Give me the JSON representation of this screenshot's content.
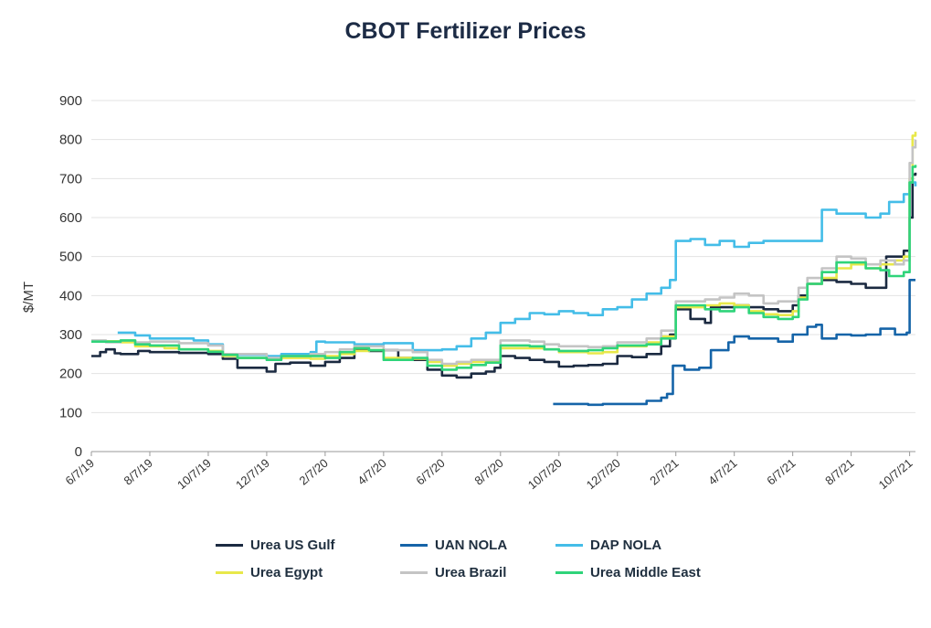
{
  "chart_data": {
    "type": "line",
    "title": "CBOT Fertilizer Prices",
    "xlabel": "",
    "ylabel": "$/MT",
    "ylim": [
      0,
      900
    ],
    "yticks": [
      "0",
      "100",
      "200",
      "300",
      "400",
      "500",
      "600",
      "700",
      "800",
      "900"
    ],
    "xticks": [
      "6/7/19",
      "8/7/19",
      "10/7/19",
      "12/7/19",
      "2/7/20",
      "4/7/20",
      "6/7/20",
      "8/7/20",
      "10/7/20",
      "12/7/20",
      "2/7/21",
      "4/7/21",
      "6/7/21",
      "8/7/21",
      "10/7/21"
    ],
    "xticks_month_index": [
      0,
      2,
      4,
      6,
      8,
      10,
      12,
      14,
      16,
      18,
      20,
      22,
      24,
      26,
      28
    ],
    "x_range_month_index": [
      0,
      28.2
    ],
    "grid": true,
    "legend_position": "bottom",
    "series": [
      {
        "name": "Urea US Gulf",
        "color": "#1b2a41",
        "points": [
          [
            0,
            245
          ],
          [
            0.3,
            255
          ],
          [
            0.5,
            262
          ],
          [
            0.8,
            252
          ],
          [
            1.0,
            250
          ],
          [
            1.5,
            250
          ],
          [
            1.6,
            258
          ],
          [
            2.0,
            255
          ],
          [
            3.0,
            253
          ],
          [
            4.0,
            250
          ],
          [
            4.5,
            238
          ],
          [
            5.0,
            215
          ],
          [
            6.0,
            205
          ],
          [
            6.3,
            225
          ],
          [
            6.8,
            228
          ],
          [
            7.5,
            220
          ],
          [
            8.0,
            230
          ],
          [
            8.5,
            240
          ],
          [
            9.0,
            262
          ],
          [
            9.5,
            258
          ],
          [
            10.0,
            260
          ],
          [
            10.5,
            240
          ],
          [
            11.0,
            235
          ],
          [
            11.5,
            210
          ],
          [
            12.0,
            195
          ],
          [
            12.5,
            190
          ],
          [
            13.0,
            200
          ],
          [
            13.5,
            205
          ],
          [
            13.8,
            215
          ],
          [
            14.0,
            245
          ],
          [
            14.5,
            240
          ],
          [
            15.0,
            235
          ],
          [
            15.5,
            230
          ],
          [
            16.0,
            218
          ],
          [
            16.5,
            220
          ],
          [
            17.0,
            222
          ],
          [
            17.5,
            225
          ],
          [
            18.0,
            245
          ],
          [
            18.5,
            242
          ],
          [
            19.0,
            250
          ],
          [
            19.5,
            270
          ],
          [
            19.8,
            300
          ],
          [
            20.0,
            365
          ],
          [
            20.5,
            340
          ],
          [
            21.0,
            330
          ],
          [
            21.2,
            370
          ],
          [
            22.0,
            375
          ],
          [
            22.5,
            370
          ],
          [
            23.0,
            365
          ],
          [
            23.5,
            360
          ],
          [
            24.0,
            375
          ],
          [
            24.2,
            400
          ],
          [
            24.5,
            430
          ],
          [
            25.0,
            440
          ],
          [
            25.5,
            435
          ],
          [
            26.0,
            430
          ],
          [
            26.5,
            420
          ],
          [
            27.0,
            420
          ],
          [
            27.2,
            500
          ],
          [
            27.8,
            515
          ],
          [
            28.0,
            600
          ],
          [
            28.1,
            710
          ],
          [
            28.2,
            715
          ]
        ]
      },
      {
        "name": "UAN NOLA",
        "color": "#1564a8",
        "points": [
          [
            15.8,
            122
          ],
          [
            16.5,
            122
          ],
          [
            17.0,
            120
          ],
          [
            17.5,
            122
          ],
          [
            18.0,
            122
          ],
          [
            18.5,
            122
          ],
          [
            19.0,
            130
          ],
          [
            19.5,
            138
          ],
          [
            19.7,
            148
          ],
          [
            19.9,
            220
          ],
          [
            20.3,
            210
          ],
          [
            20.8,
            215
          ],
          [
            21.2,
            260
          ],
          [
            21.8,
            280
          ],
          [
            22.0,
            295
          ],
          [
            22.5,
            290
          ],
          [
            23.0,
            290
          ],
          [
            23.5,
            282
          ],
          [
            24.0,
            300
          ],
          [
            24.5,
            320
          ],
          [
            24.8,
            325
          ],
          [
            25.0,
            290
          ],
          [
            25.5,
            300
          ],
          [
            26.0,
            298
          ],
          [
            26.5,
            300
          ],
          [
            27.0,
            315
          ],
          [
            27.5,
            300
          ],
          [
            27.9,
            305
          ],
          [
            28.0,
            440
          ],
          [
            28.2,
            440
          ]
        ]
      },
      {
        "name": "DAP NOLA",
        "color": "#44bde8",
        "points": [
          [
            0.9,
            305
          ],
          [
            1.5,
            298
          ],
          [
            2.0,
            290
          ],
          [
            3.0,
            290
          ],
          [
            3.5,
            285
          ],
          [
            4.0,
            275
          ],
          [
            4.5,
            250
          ],
          [
            5.0,
            248
          ],
          [
            6.0,
            245
          ],
          [
            6.5,
            250
          ],
          [
            7.5,
            255
          ],
          [
            7.7,
            282
          ],
          [
            8.0,
            280
          ],
          [
            9.0,
            275
          ],
          [
            10.0,
            278
          ],
          [
            11.0,
            260
          ],
          [
            12.0,
            262
          ],
          [
            12.5,
            270
          ],
          [
            13.0,
            290
          ],
          [
            13.5,
            305
          ],
          [
            14.0,
            330
          ],
          [
            14.5,
            340
          ],
          [
            15.0,
            355
          ],
          [
            15.5,
            352
          ],
          [
            16.0,
            360
          ],
          [
            16.5,
            355
          ],
          [
            17.0,
            350
          ],
          [
            17.5,
            365
          ],
          [
            18.0,
            370
          ],
          [
            18.5,
            390
          ],
          [
            19.0,
            405
          ],
          [
            19.5,
            420
          ],
          [
            19.8,
            440
          ],
          [
            20.0,
            540
          ],
          [
            20.5,
            545
          ],
          [
            21.0,
            530
          ],
          [
            21.5,
            540
          ],
          [
            22.0,
            525
          ],
          [
            22.5,
            535
          ],
          [
            23.0,
            540
          ],
          [
            25.0,
            620
          ],
          [
            25.5,
            610
          ],
          [
            26.0,
            610
          ],
          [
            26.5,
            600
          ],
          [
            27.0,
            610
          ],
          [
            27.3,
            640
          ],
          [
            27.8,
            660
          ],
          [
            28.0,
            690
          ],
          [
            28.2,
            680
          ]
        ]
      },
      {
        "name": "Urea Egypt",
        "color": "#e8e84a",
        "points": [
          [
            0,
            283
          ],
          [
            1.0,
            280
          ],
          [
            1.5,
            270
          ],
          [
            2.5,
            265
          ],
          [
            3.0,
            262
          ],
          [
            4.0,
            258
          ],
          [
            4.5,
            245
          ],
          [
            5.0,
            240
          ],
          [
            6.0,
            238
          ],
          [
            6.5,
            240
          ],
          [
            7.5,
            238
          ],
          [
            8.0,
            245
          ],
          [
            8.5,
            250
          ],
          [
            9.0,
            258
          ],
          [
            9.5,
            260
          ],
          [
            10.0,
            240
          ],
          [
            11.0,
            238
          ],
          [
            11.5,
            230
          ],
          [
            12.0,
            220
          ],
          [
            12.5,
            225
          ],
          [
            13.0,
            230
          ],
          [
            14.0,
            265
          ],
          [
            15.0,
            265
          ],
          [
            15.5,
            262
          ],
          [
            16.0,
            255
          ],
          [
            17.0,
            252
          ],
          [
            17.5,
            255
          ],
          [
            18.0,
            270
          ],
          [
            19.0,
            280
          ],
          [
            19.5,
            295
          ],
          [
            20.0,
            370
          ],
          [
            21.0,
            375
          ],
          [
            21.5,
            380
          ],
          [
            22.0,
            375
          ],
          [
            22.5,
            360
          ],
          [
            23.0,
            352
          ],
          [
            23.5,
            350
          ],
          [
            24.0,
            360
          ],
          [
            24.2,
            395
          ],
          [
            24.5,
            430
          ],
          [
            25.0,
            445
          ],
          [
            25.5,
            470
          ],
          [
            26.0,
            480
          ],
          [
            26.5,
            470
          ],
          [
            27.0,
            480
          ],
          [
            27.5,
            490
          ],
          [
            27.8,
            500
          ],
          [
            28.0,
            700
          ],
          [
            28.1,
            810
          ],
          [
            28.2,
            820
          ]
        ]
      },
      {
        "name": "Urea Brazil",
        "color": "#c4c4c4",
        "points": [
          [
            0,
            285
          ],
          [
            0.5,
            280
          ],
          [
            1.0,
            285
          ],
          [
            1.5,
            280
          ],
          [
            2.0,
            282
          ],
          [
            3.0,
            278
          ],
          [
            4.0,
            272
          ],
          [
            4.5,
            250
          ],
          [
            5.0,
            250
          ],
          [
            6.0,
            240
          ],
          [
            6.5,
            245
          ],
          [
            7.5,
            250
          ],
          [
            8.0,
            255
          ],
          [
            8.5,
            262
          ],
          [
            9.0,
            270
          ],
          [
            10.0,
            260
          ],
          [
            11.0,
            255
          ],
          [
            11.5,
            235
          ],
          [
            12.0,
            225
          ],
          [
            12.5,
            230
          ],
          [
            13.0,
            235
          ],
          [
            14.0,
            285
          ],
          [
            15.0,
            282
          ],
          [
            15.5,
            275
          ],
          [
            16.0,
            270
          ],
          [
            17.0,
            268
          ],
          [
            17.5,
            270
          ],
          [
            18.0,
            280
          ],
          [
            19.0,
            290
          ],
          [
            19.5,
            310
          ],
          [
            20.0,
            385
          ],
          [
            21.0,
            390
          ],
          [
            21.5,
            395
          ],
          [
            22.0,
            405
          ],
          [
            22.5,
            400
          ],
          [
            23.0,
            380
          ],
          [
            23.5,
            385
          ],
          [
            24.0,
            385
          ],
          [
            24.2,
            420
          ],
          [
            24.5,
            445
          ],
          [
            25.0,
            470
          ],
          [
            25.5,
            500
          ],
          [
            26.0,
            495
          ],
          [
            26.5,
            480
          ],
          [
            27.0,
            490
          ],
          [
            27.5,
            480
          ],
          [
            27.8,
            490
          ],
          [
            28.0,
            740
          ],
          [
            28.1,
            780
          ],
          [
            28.2,
            800
          ]
        ]
      },
      {
        "name": "Urea Middle East",
        "color": "#2fd47a",
        "points": [
          [
            0,
            282
          ],
          [
            1.0,
            285
          ],
          [
            1.5,
            275
          ],
          [
            2.0,
            272
          ],
          [
            3.0,
            262
          ],
          [
            4.0,
            256
          ],
          [
            4.5,
            248
          ],
          [
            5.0,
            240
          ],
          [
            6.0,
            235
          ],
          [
            6.5,
            245
          ],
          [
            7.5,
            245
          ],
          [
            8.0,
            240
          ],
          [
            8.5,
            255
          ],
          [
            9.0,
            265
          ],
          [
            9.5,
            260
          ],
          [
            10.0,
            235
          ],
          [
            11.0,
            240
          ],
          [
            11.5,
            220
          ],
          [
            12.0,
            210
          ],
          [
            12.5,
            215
          ],
          [
            13.0,
            222
          ],
          [
            13.5,
            228
          ],
          [
            14.0,
            272
          ],
          [
            15.0,
            270
          ],
          [
            15.5,
            262
          ],
          [
            16.0,
            258
          ],
          [
            17.0,
            260
          ],
          [
            17.5,
            265
          ],
          [
            18.0,
            272
          ],
          [
            19.0,
            275
          ],
          [
            19.5,
            290
          ],
          [
            20.0,
            375
          ],
          [
            21.0,
            365
          ],
          [
            21.5,
            360
          ],
          [
            22.0,
            370
          ],
          [
            22.5,
            355
          ],
          [
            23.0,
            345
          ],
          [
            23.5,
            340
          ],
          [
            24.0,
            345
          ],
          [
            24.2,
            390
          ],
          [
            24.5,
            430
          ],
          [
            25.0,
            460
          ],
          [
            25.5,
            485
          ],
          [
            26.0,
            485
          ],
          [
            26.5,
            470
          ],
          [
            27.0,
            465
          ],
          [
            27.3,
            450
          ],
          [
            27.8,
            460
          ],
          [
            28.0,
            690
          ],
          [
            28.1,
            730
          ],
          [
            28.2,
            735
          ]
        ]
      }
    ]
  }
}
